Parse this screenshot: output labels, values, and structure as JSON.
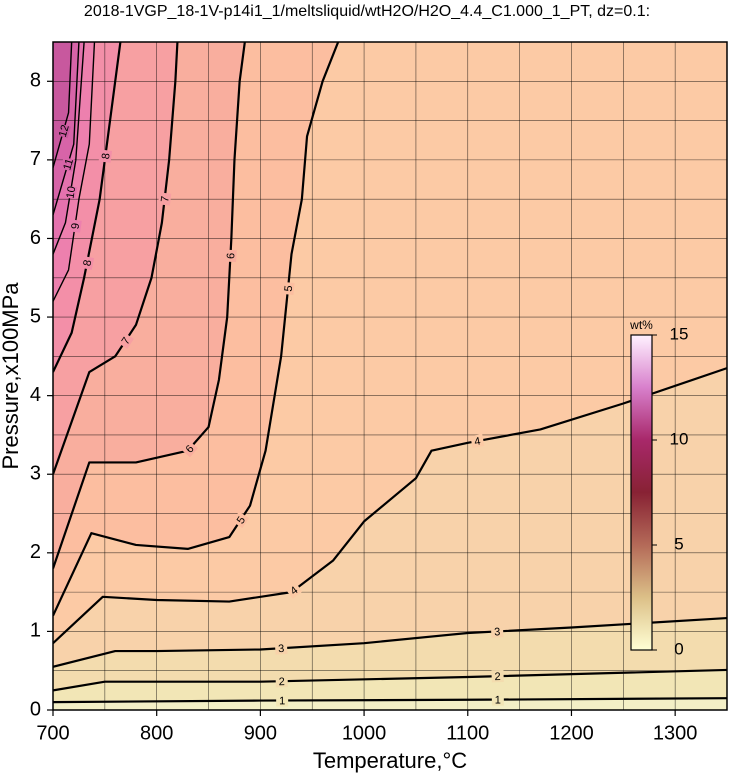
{
  "chart_data": {
    "type": "contour",
    "title": "2018-1VGP_18-1V-p14i1_1/meltsliquid/wtH2O/H2O_4.4_C1.000_1_PT, dz=0.1:",
    "xlabel": "Temperature,°C",
    "ylabel": "Pressure,x100MPa",
    "xlim": [
      700,
      1350
    ],
    "ylim": [
      0,
      8.5
    ],
    "xticks": [
      700,
      800,
      900,
      1000,
      1100,
      1200,
      1300
    ],
    "yticks": [
      0,
      1,
      2,
      3,
      4,
      5,
      6,
      7,
      8
    ],
    "xgrid": [
      750,
      800,
      850,
      900,
      950,
      1000,
      1050,
      1100,
      1150,
      1200,
      1250,
      1300
    ],
    "ygrid": [
      0.5,
      1,
      1.5,
      2,
      2.5,
      3,
      3.5,
      4,
      4.5,
      5,
      5.5,
      6,
      6.5,
      7,
      7.5,
      8
    ],
    "background": "#f3efc6",
    "contours": [
      {
        "level": 1,
        "color": "#f2e6b6",
        "x": [
          700,
          900,
          1100,
          1350
        ],
        "y": [
          0.1,
          0.12,
          0.13,
          0.15
        ]
      },
      {
        "level": 2,
        "color": "#f3dcae",
        "x": [
          700,
          750,
          900,
          1100,
          1350
        ],
        "y": [
          0.25,
          0.36,
          0.36,
          0.42,
          0.51
        ]
      },
      {
        "level": 3,
        "color": "#f8d2aa",
        "x": [
          700,
          760,
          800,
          900,
          1000,
          1100,
          1200,
          1350
        ],
        "y": [
          0.55,
          0.75,
          0.75,
          0.77,
          0.85,
          0.98,
          1.05,
          1.17
        ]
      },
      {
        "level": 4,
        "color": "#fccaa5",
        "x": [
          700,
          748,
          800,
          870,
          930,
          970,
          1000,
          1050,
          1065,
          1100,
          1170,
          1250,
          1350
        ],
        "y": [
          0.85,
          1.44,
          1.4,
          1.38,
          1.5,
          1.9,
          2.4,
          2.95,
          3.3,
          3.4,
          3.57,
          3.9,
          4.35
        ]
      },
      {
        "level": 5,
        "color": "#fcbea0",
        "x": [
          700,
          737,
          780,
          830,
          870,
          890,
          905,
          920,
          930,
          940,
          945,
          960,
          975
        ],
        "y": [
          1.2,
          2.25,
          2.1,
          2.05,
          2.2,
          2.6,
          3.3,
          4.5,
          5.8,
          6.5,
          7.3,
          8.0,
          8.5
        ]
      },
      {
        "level": 6,
        "color": "#f9ae9e",
        "x": [
          700,
          735,
          780,
          830,
          850,
          860,
          868,
          872,
          875,
          880,
          885
        ],
        "y": [
          1.8,
          3.15,
          3.15,
          3.3,
          3.6,
          4.2,
          5.0,
          6.0,
          7.0,
          8.0,
          8.5
        ]
      },
      {
        "level": 7,
        "color": "#f7a0a2",
        "x": [
          700,
          735,
          760,
          780,
          795,
          805,
          812,
          818,
          820
        ],
        "y": [
          3.0,
          4.3,
          4.5,
          4.9,
          5.5,
          6.2,
          7.0,
          8.0,
          8.5
        ]
      },
      {
        "level": 8,
        "color": "#f38fa8",
        "x": [
          700,
          718,
          730,
          745,
          755,
          765
        ],
        "y": [
          4.3,
          4.8,
          5.5,
          6.5,
          7.5,
          8.5
        ]
      },
      {
        "level": 9,
        "color": "#ed80ae",
        "x": [
          700,
          715,
          725,
          735,
          740
        ],
        "y": [
          5.2,
          5.6,
          6.5,
          7.2,
          8.5
        ]
      },
      {
        "level": 10,
        "color": "#e472ae",
        "x": [
          700,
          712,
          722,
          730
        ],
        "y": [
          5.8,
          6.2,
          7.0,
          8.5
        ]
      },
      {
        "level": 11,
        "color": "#d764a8",
        "x": [
          700,
          720,
          725
        ],
        "y": [
          6.3,
          7.2,
          8.5
        ]
      },
      {
        "level": 12,
        "color": "#c8589e",
        "x": [
          700,
          715,
          718
        ],
        "y": [
          6.9,
          7.6,
          8.5
        ]
      }
    ],
    "colorbar": {
      "label": "wt%",
      "lim": [
        0,
        15
      ],
      "ticks": [
        0,
        5,
        10,
        15
      ],
      "colors": [
        "#ffffd4",
        "#dcc088",
        "#b46a58",
        "#882234",
        "#a8286a",
        "#d880cc",
        "#fff2ff"
      ]
    }
  }
}
